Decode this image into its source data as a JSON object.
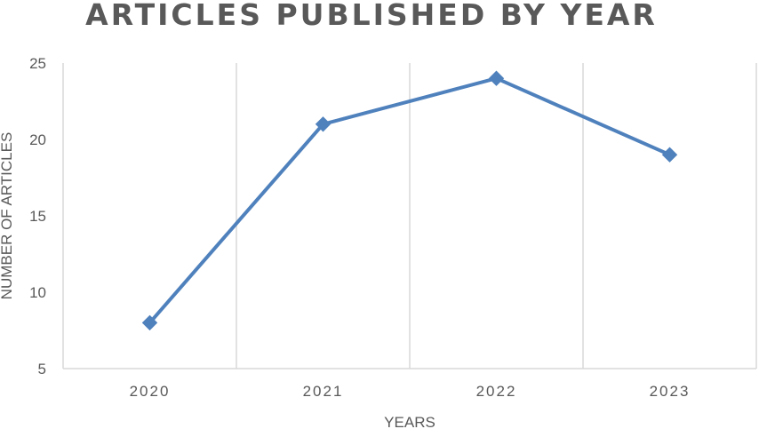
{
  "chart_data": {
    "type": "line",
    "title": "ARTICLES PUBLISHED BY YEAR",
    "xlabel": "YEARS",
    "ylabel": "NUMBER OF ARTICLES",
    "categories": [
      "2020",
      "2021",
      "2022",
      "2023"
    ],
    "series": [
      {
        "values": [
          8,
          21,
          24,
          19
        ],
        "color": "#4f81bd",
        "marker": "diamond"
      }
    ],
    "ylim": [
      5,
      25
    ],
    "yticks": [
      5,
      10,
      15,
      20,
      25
    ],
    "grid": {
      "vertical": true,
      "horizontal": false,
      "color": "#d9d9d9"
    },
    "legend": "none"
  }
}
